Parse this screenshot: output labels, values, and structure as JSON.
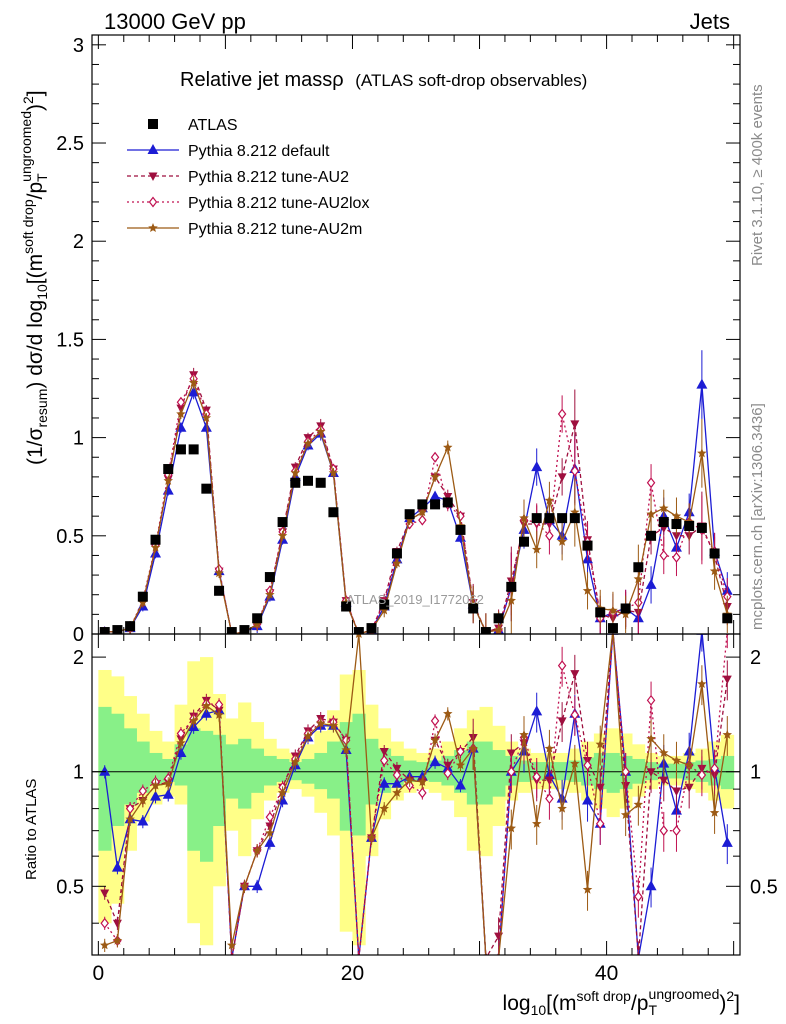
{
  "chart_data": {
    "type": "line",
    "header_left": "13000 GeV pp",
    "header_right": "Jets",
    "title": "Relative jet massρ",
    "subtitle": "(ATLAS soft-drop observables)",
    "ylabel_main": "(1/σ_resum) dσ/d log10[(m^soft drop/pT^ungroomed)^2]",
    "ylabel_ratio": "Ratio to ATLAS",
    "xlabel": "log10[(m^soft drop/pT^ungroomed)^2]",
    "side_text_top": "Rivet 3.1.10, ≥ 400k events",
    "side_text_bottom": "mcplots.cern.ch [arXiv:1306.3436]",
    "watermark": "ATLAS_2019_I1772062",
    "xlim": [
      -0.5,
      50.5
    ],
    "ylim_main": [
      0,
      3.05
    ],
    "ylim_ratio": [
      0.33,
      2.3
    ],
    "x_ticks": [
      "0",
      "20",
      "40"
    ],
    "y_ticks_main": [
      "0",
      "0.5",
      "1",
      "1.5",
      "2",
      "2.5",
      "3"
    ],
    "y_ticks_ratio": [
      "0.5",
      "1",
      "2"
    ],
    "x": [
      0.5,
      1.5,
      2.5,
      3.5,
      4.5,
      5.5,
      6.5,
      7.5,
      8.5,
      9.5,
      10.5,
      11.5,
      12.5,
      13.5,
      14.5,
      15.5,
      16.5,
      17.5,
      18.5,
      19.5,
      20.5,
      21.5,
      22.5,
      23.5,
      24.5,
      25.5,
      26.5,
      27.5,
      28.5,
      29.5,
      30.5,
      31.5,
      32.5,
      33.5,
      34.5,
      35.5,
      36.5,
      37.5,
      38.5,
      39.5,
      40.5,
      41.5,
      42.5,
      43.5,
      44.5,
      45.5,
      46.5,
      47.5,
      48.5,
      49.5
    ],
    "series": [
      {
        "name": "ATLAS",
        "color": "#000000",
        "values": [
          0.01,
          0.02,
          0.04,
          0.19,
          0.48,
          0.84,
          0.94,
          0.94,
          0.74,
          0.22,
          0.01,
          0.02,
          0.08,
          0.29,
          0.57,
          0.77,
          0.78,
          0.77,
          0.62,
          0.14,
          0.01,
          0.03,
          0.15,
          0.41,
          0.61,
          0.66,
          0.66,
          0.67,
          0.53,
          0.13,
          0.01,
          0.08,
          0.24,
          0.47,
          0.59,
          0.59,
          0.59,
          0.59,
          0.45,
          0.11,
          0.03,
          0.13,
          0.34,
          0.5,
          0.57,
          0.56,
          0.55,
          0.54,
          0.41,
          0.08
        ]
      },
      {
        "name": "Pythia 8.212 default",
        "color": "#1c1cd4",
        "values": [
          0.01,
          0.011,
          0.03,
          0.14,
          0.41,
          0.73,
          1.05,
          1.23,
          1.05,
          0.32,
          0.0,
          0.01,
          0.04,
          0.19,
          0.48,
          0.8,
          0.96,
          1.02,
          0.82,
          0.16,
          0.0,
          0.02,
          0.14,
          0.38,
          0.59,
          0.64,
          0.7,
          0.68,
          0.49,
          0.15,
          0.01,
          0.02,
          0.24,
          0.53,
          0.85,
          0.58,
          0.5,
          0.84,
          0.38,
          0.08,
          0.11,
          0.13,
          0.08,
          0.25,
          0.6,
          0.44,
          0.62,
          1.27,
          0.42,
          0.22
        ],
        "ratio": [
          1.0,
          0.56,
          0.75,
          0.74,
          0.86,
          0.87,
          1.12,
          1.31,
          1.42,
          1.45,
          0.0,
          0.5,
          0.5,
          0.65,
          0.84,
          1.04,
          1.23,
          1.32,
          1.32,
          1.14,
          0.0,
          0.67,
          0.93,
          0.93,
          0.97,
          0.97,
          1.06,
          1.02,
          0.92,
          1.15,
          0.0,
          0.25,
          1.0,
          1.13,
          1.44,
          0.98,
          0.85,
          1.42,
          0.84,
          0.73,
          3.6,
          1.0,
          0.24,
          0.5,
          1.05,
          0.79,
          1.13,
          2.35,
          1.02,
          0.65
        ]
      },
      {
        "name": "Pythia 8.212 tune-AU2",
        "color": "#9e0f3e",
        "values": [
          0.01,
          0.012,
          0.03,
          0.16,
          0.44,
          0.79,
          1.15,
          1.32,
          1.14,
          0.32,
          0.0,
          0.01,
          0.05,
          0.21,
          0.52,
          0.85,
          1.0,
          1.06,
          0.84,
          0.17,
          0.0,
          0.02,
          0.17,
          0.42,
          0.58,
          0.62,
          0.8,
          0.7,
          0.6,
          0.16,
          0.01,
          0.03,
          0.27,
          0.56,
          0.56,
          0.56,
          0.8,
          1.07,
          0.48,
          0.1,
          0.08,
          0.12,
          0.11,
          0.5,
          0.54,
          0.5,
          0.5,
          0.55,
          0.4,
          0.14
        ],
        "ratio": [
          0.48,
          0.4,
          0.8,
          0.84,
          0.92,
          0.94,
          1.22,
          1.4,
          1.54,
          1.45,
          0.0,
          0.5,
          0.62,
          0.72,
          0.91,
          1.1,
          1.28,
          1.38,
          1.35,
          1.21,
          0.0,
          0.67,
          1.13,
          1.02,
          0.95,
          0.94,
          1.21,
          1.04,
          1.13,
          1.23,
          0.0,
          0.37,
          1.12,
          1.19,
          0.95,
          0.95,
          1.36,
          1.81,
          1.07,
          0.91,
          2.67,
          0.92,
          0.32,
          1.0,
          0.95,
          0.89,
          0.91,
          1.02,
          0.98,
          1.75
        ]
      },
      {
        "name": "Pythia 8.212 tune-AU2lox",
        "color": "#c01050",
        "values": [
          0.01,
          0.012,
          0.03,
          0.17,
          0.45,
          0.81,
          1.18,
          1.3,
          1.12,
          0.33,
          0.0,
          0.01,
          0.05,
          0.22,
          0.52,
          0.83,
          0.98,
          1.04,
          0.84,
          0.17,
          0.0,
          0.02,
          0.16,
          0.4,
          0.56,
          0.58,
          0.9,
          0.66,
          0.6,
          0.15,
          0.01,
          0.02,
          0.24,
          0.58,
          0.57,
          0.5,
          1.12,
          0.83,
          0.47,
          0.08,
          0.11,
          0.13,
          0.16,
          0.77,
          0.4,
          0.39,
          0.57,
          0.53,
          0.42,
          0.19
        ],
        "ratio": [
          0.4,
          0.36,
          0.8,
          0.89,
          0.94,
          0.96,
          1.26,
          1.38,
          1.51,
          1.5,
          0.0,
          0.5,
          0.62,
          0.76,
          0.91,
          1.08,
          1.26,
          1.35,
          1.35,
          1.21,
          0.0,
          0.67,
          1.07,
          0.98,
          0.92,
          0.88,
          1.36,
          0.99,
          1.13,
          1.15,
          0.0,
          0.25,
          1.0,
          1.23,
          0.97,
          0.85,
          1.9,
          1.41,
          1.04,
          0.73,
          3.6,
          1.0,
          0.47,
          1.54,
          0.7,
          0.7,
          1.04,
          0.98,
          1.02,
          2.4
        ]
      },
      {
        "name": "Pythia 8.212 tune-AU2m",
        "color": "#9c5a14",
        "values": [
          0.01,
          0.012,
          0.03,
          0.16,
          0.44,
          0.78,
          1.12,
          1.28,
          1.1,
          0.31,
          0.0,
          0.01,
          0.05,
          0.2,
          0.5,
          0.82,
          0.97,
          1.03,
          0.82,
          0.16,
          0.0,
          0.02,
          0.12,
          0.36,
          0.58,
          0.62,
          0.8,
          0.95,
          0.55,
          0.15,
          0.01,
          0.02,
          0.17,
          0.59,
          0.43,
          0.68,
          0.47,
          0.62,
          0.22,
          0.13,
          0.12,
          0.1,
          0.28,
          0.61,
          0.64,
          0.6,
          0.57,
          0.92,
          0.32,
          0.1
        ],
        "ratio": [
          0.35,
          0.36,
          0.75,
          0.84,
          0.92,
          0.93,
          1.19,
          1.36,
          1.49,
          1.41,
          0.35,
          0.5,
          0.62,
          0.69,
          0.88,
          1.06,
          1.24,
          1.34,
          1.32,
          1.14,
          2.3,
          0.67,
          0.8,
          0.88,
          0.95,
          0.94,
          1.21,
          1.42,
          1.04,
          1.15,
          0.0,
          0.25,
          0.71,
          1.25,
          0.73,
          1.15,
          0.8,
          1.05,
          0.49,
          1.18,
          4.0,
          0.77,
          0.82,
          1.22,
          1.12,
          1.07,
          1.04,
          1.7,
          0.78,
          1.25
        ]
      }
    ],
    "band_green": [
      [
        0.62,
        1.48
      ],
      [
        0.72,
        1.42
      ],
      [
        0.82,
        1.3
      ],
      [
        0.88,
        1.2
      ],
      [
        0.92,
        1.12
      ],
      [
        0.94,
        1.08
      ],
      [
        0.92,
        1.18
      ],
      [
        0.62,
        1.3
      ],
      [
        0.58,
        1.28
      ],
      [
        0.72,
        1.25
      ],
      [
        0.85,
        1.18
      ],
      [
        0.8,
        1.22
      ],
      [
        0.88,
        1.15
      ],
      [
        0.92,
        1.1
      ],
      [
        0.94,
        1.08
      ],
      [
        0.95,
        1.06
      ],
      [
        0.93,
        1.08
      ],
      [
        0.9,
        1.12
      ],
      [
        0.85,
        1.2
      ],
      [
        0.7,
        1.35
      ],
      [
        0.68,
        1.42
      ],
      [
        0.82,
        1.22
      ],
      [
        0.88,
        1.15
      ],
      [
        0.92,
        1.1
      ],
      [
        0.94,
        1.07
      ],
      [
        0.95,
        1.06
      ],
      [
        0.94,
        1.07
      ],
      [
        0.92,
        1.1
      ],
      [
        0.88,
        1.14
      ],
      [
        0.82,
        1.2
      ],
      [
        0.82,
        1.2
      ],
      [
        0.86,
        1.14
      ],
      [
        0.92,
        1.1
      ],
      [
        0.94,
        1.07
      ],
      [
        0.95,
        1.06
      ],
      [
        0.95,
        1.06
      ],
      [
        0.95,
        1.06
      ],
      [
        0.94,
        1.07
      ],
      [
        0.92,
        1.09
      ],
      [
        0.9,
        1.12
      ],
      [
        0.88,
        1.12
      ],
      [
        0.9,
        1.1
      ],
      [
        0.93,
        1.08
      ],
      [
        0.95,
        1.06
      ],
      [
        0.96,
        1.05
      ],
      [
        0.96,
        1.05
      ],
      [
        0.95,
        1.06
      ],
      [
        0.94,
        1.07
      ],
      [
        0.92,
        1.08
      ],
      [
        0.9,
        1.1
      ]
    ],
    "band_yellow": [
      [
        0.4,
        1.85
      ],
      [
        0.45,
        1.78
      ],
      [
        0.62,
        1.58
      ],
      [
        0.74,
        1.42
      ],
      [
        0.82,
        1.28
      ],
      [
        0.86,
        1.2
      ],
      [
        0.82,
        1.5
      ],
      [
        0.4,
        1.95
      ],
      [
        0.35,
        2.0
      ],
      [
        0.5,
        1.6
      ],
      [
        0.7,
        1.38
      ],
      [
        0.6,
        1.52
      ],
      [
        0.75,
        1.35
      ],
      [
        0.84,
        1.22
      ],
      [
        0.88,
        1.15
      ],
      [
        0.9,
        1.12
      ],
      [
        0.86,
        1.18
      ],
      [
        0.78,
        1.28
      ],
      [
        0.68,
        1.45
      ],
      [
        0.38,
        1.8
      ],
      [
        0.35,
        1.85
      ],
      [
        0.6,
        1.5
      ],
      [
        0.75,
        1.3
      ],
      [
        0.84,
        1.2
      ],
      [
        0.88,
        1.15
      ],
      [
        0.9,
        1.12
      ],
      [
        0.88,
        1.15
      ],
      [
        0.84,
        1.2
      ],
      [
        0.76,
        1.3
      ],
      [
        0.62,
        1.45
      ],
      [
        0.6,
        1.48
      ],
      [
        0.72,
        1.32
      ],
      [
        0.84,
        1.2
      ],
      [
        0.88,
        1.15
      ],
      [
        0.9,
        1.12
      ],
      [
        0.9,
        1.12
      ],
      [
        0.9,
        1.12
      ],
      [
        0.88,
        1.15
      ],
      [
        0.84,
        1.2
      ],
      [
        0.8,
        1.26
      ],
      [
        0.76,
        1.3
      ],
      [
        0.8,
        1.26
      ],
      [
        0.86,
        1.18
      ],
      [
        0.9,
        1.12
      ],
      [
        0.92,
        1.1
      ],
      [
        0.92,
        1.1
      ],
      [
        0.9,
        1.12
      ],
      [
        0.88,
        1.15
      ],
      [
        0.84,
        1.2
      ],
      [
        0.8,
        1.25
      ]
    ]
  }
}
